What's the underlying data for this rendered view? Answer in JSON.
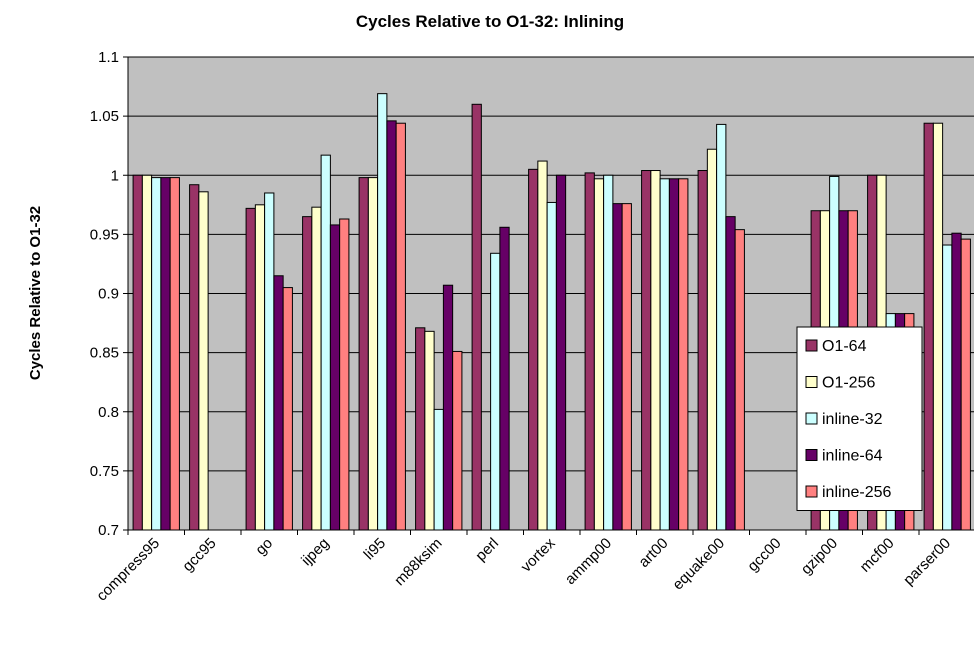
{
  "chart_data": {
    "type": "bar",
    "title": "Cycles Relative to O1-32: Inlining",
    "y_label": "Cycles Relative to O1-32",
    "categories": [
      "compress95",
      "gcc95",
      "go",
      "ijpeg",
      "li95",
      "m88ksim",
      "perl",
      "vortex",
      "ammp00",
      "art00",
      "equake00",
      "gcc00",
      "gzip00",
      "mcf00",
      "parser00"
    ],
    "series": [
      {
        "name": "O1-64",
        "color": "#993366",
        "values": [
          1.0,
          0.992,
          0.972,
          0.965,
          0.998,
          0.871,
          1.06,
          1.005,
          1.002,
          1.004,
          1.004,
          null,
          0.97,
          1.0,
          1.044
        ]
      },
      {
        "name": "O1-256",
        "color": "#FFFFCC",
        "values": [
          1.0,
          0.986,
          0.975,
          0.973,
          0.998,
          0.868,
          null,
          1.012,
          0.997,
          1.004,
          1.022,
          null,
          0.97,
          1.0,
          1.044
        ]
      },
      {
        "name": "inline-32",
        "color": "#CCFFFF",
        "values": [
          0.998,
          null,
          0.985,
          1.017,
          1.069,
          0.802,
          0.934,
          0.977,
          1.0,
          0.997,
          1.043,
          null,
          0.999,
          0.883,
          0.941
        ]
      },
      {
        "name": "inline-64",
        "color": "#660066",
        "values": [
          0.998,
          null,
          0.915,
          0.958,
          1.046,
          0.907,
          0.956,
          1.0,
          0.976,
          0.997,
          0.965,
          null,
          0.97,
          0.883,
          0.951
        ]
      },
      {
        "name": "inline-256",
        "color": "#FF8080",
        "values": [
          0.998,
          null,
          0.905,
          0.963,
          1.044,
          0.851,
          null,
          null,
          0.976,
          0.997,
          0.954,
          null,
          0.97,
          0.883,
          0.946
        ]
      }
    ],
    "ylim": [
      0.7,
      1.1
    ],
    "yticks": [
      0.7,
      0.75,
      0.8,
      0.85,
      0.9,
      0.95,
      1,
      1.05,
      1.1
    ],
    "grid": true,
    "legend": "right"
  }
}
